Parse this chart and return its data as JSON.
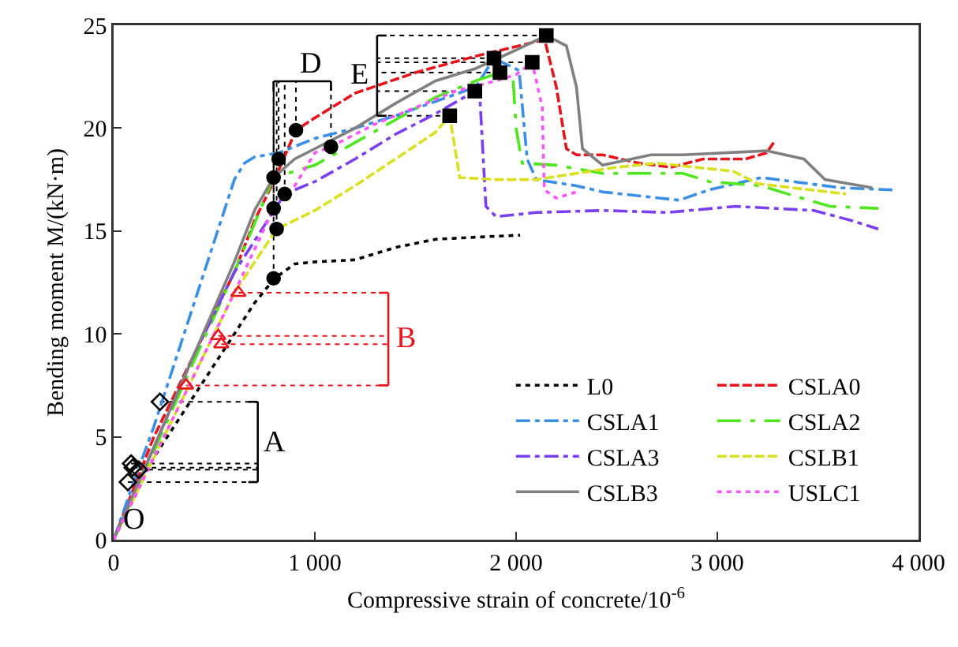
{
  "chart_data": {
    "type": "line",
    "xlabel": "Compressive strain of concrete/10$^{-6}$",
    "ylabel": "Bending moment M/(kN·m)",
    "xlim": [
      0,
      4000
    ],
    "xticks": [
      0,
      {
        "value": 1000,
        "label": "1 000"
      },
      {
        "value": 2000,
        "label": "2 000"
      },
      {
        "value": 3000,
        "label": "3 000"
      },
      {
        "value": 4000,
        "label": "4 000"
      }
    ],
    "ylim": [
      0,
      25
    ],
    "yticks": [
      0,
      5,
      10,
      15,
      20,
      25
    ],
    "grid": false,
    "legend": "bottom right",
    "series": [
      {
        "name": "L0",
        "color": "#000000",
        "line_style": "dotted",
        "x": [
          0,
          100,
          200,
          300,
          400,
          500,
          600,
          700,
          800,
          900,
          1000,
          1200,
          1400,
          1600,
          1800,
          2020
        ],
        "values": [
          0,
          2,
          4,
          5.5,
          7,
          8.5,
          10,
          11.5,
          12.7,
          13.4,
          13.5,
          13.6,
          14.2,
          14.6,
          14.7,
          14.8
        ]
      },
      {
        "name": "CSLA0",
        "color": "#e8141c",
        "line_style": "dashed",
        "x": [
          0,
          100,
          200,
          300,
          400,
          500,
          600,
          700,
          800,
          906,
          1000,
          1200,
          1500,
          1800,
          2142,
          2200,
          2250,
          2300,
          2430,
          2610,
          2770,
          2930,
          3140,
          3245,
          3280
        ],
        "values": [
          0,
          2.5,
          5,
          7,
          9,
          11,
          13,
          15.5,
          17.5,
          19.9,
          20.5,
          21.7,
          22.7,
          23.5,
          24.3,
          22,
          19,
          18.7,
          18.7,
          18.3,
          18.1,
          18.5,
          18.5,
          18.8,
          19.3
        ]
      },
      {
        "name": "CSLA1",
        "color": "#3a8ee6",
        "line_style": "dashdot",
        "x": [
          0,
          100,
          200,
          300,
          400,
          500,
          600,
          650,
          700,
          820,
          1000,
          1200,
          1400,
          1600,
          1800,
          1890,
          2015,
          2055,
          2100,
          2300,
          2430,
          2810,
          2960,
          3220,
          3615,
          3870
        ],
        "values": [
          0,
          2.8,
          5.5,
          8.5,
          11.5,
          14.5,
          17.5,
          18.3,
          18.6,
          18.8,
          19.5,
          20,
          20.6,
          21.3,
          22,
          23.4,
          22.8,
          18.5,
          17.5,
          17.2,
          16.9,
          16.5,
          17,
          17.6,
          17.1,
          17
        ]
      },
      {
        "name": "CSLA2",
        "color": "#4ee61e",
        "line_style": "longdashdot",
        "x": [
          0,
          200,
          400,
          600,
          795,
          1000,
          1200,
          1400,
          1600,
          1800,
          1920,
          1985,
          2000,
          2030,
          2200,
          2430,
          2830,
          2960,
          3220,
          3350,
          3560,
          3800
        ],
        "values": [
          0,
          4.3,
          8.7,
          13,
          17.6,
          18.2,
          19.3,
          20.4,
          21.5,
          22.3,
          22.7,
          22.4,
          20,
          18.3,
          18.2,
          17.8,
          17.8,
          17.4,
          17.2,
          16.8,
          16.2,
          16.1
        ]
      },
      {
        "name": "CSLA3",
        "color": "#7b3ff2",
        "line_style": "dashdot",
        "x": [
          0,
          200,
          400,
          600,
          850,
          1000,
          1200,
          1400,
          1600,
          1795,
          1820,
          1850,
          1900,
          2100,
          2430,
          2750,
          3090,
          3480,
          3670,
          3800
        ],
        "values": [
          0,
          4.5,
          9,
          13,
          16.8,
          17.4,
          18.5,
          19.7,
          20.7,
          21.8,
          21.5,
          16.2,
          15.7,
          15.9,
          16,
          15.9,
          16.2,
          16,
          15.5,
          15.1
        ]
      },
      {
        "name": "CSLB1",
        "color": "#d9e021",
        "line_style": "dashed",
        "x": [
          0,
          200,
          400,
          600,
          810,
          1000,
          1200,
          1400,
          1600,
          1670,
          1720,
          1900,
          2100,
          2300,
          2500,
          2700,
          3080,
          3200,
          3640
        ],
        "values": [
          0,
          4,
          8,
          12,
          15.1,
          16,
          17.2,
          18.5,
          19.8,
          20.6,
          17.6,
          17.5,
          17.5,
          17.8,
          18.1,
          18.3,
          17.9,
          17.3,
          16.8
        ]
      },
      {
        "name": "CSLB3",
        "color": "#808080",
        "line_style": "solid",
        "x": [
          0,
          200,
          400,
          600,
          700,
          795,
          900,
          1000,
          1200,
          1400,
          1600,
          1800,
          2000,
          2150,
          2250,
          2300,
          2330,
          2430,
          2670,
          2830,
          3245,
          3430,
          3535,
          3770
        ],
        "values": [
          0,
          4.5,
          9,
          13.5,
          16,
          17.6,
          18.5,
          19,
          20,
          21.2,
          22.3,
          22.9,
          23.8,
          24.5,
          24,
          22,
          19,
          18.2,
          18.7,
          18.7,
          18.9,
          18.5,
          17.5,
          17.1
        ]
      },
      {
        "name": "USLC1",
        "color": "#ff55ff",
        "line_style": "dotted",
        "x": [
          0,
          200,
          400,
          600,
          795,
          900,
          1000,
          1080,
          1300,
          1500,
          1700,
          1900,
          2000,
          2080,
          2130,
          2140,
          2200,
          2300
        ],
        "values": [
          0,
          4,
          8,
          12,
          16.1,
          17.2,
          18.8,
          19.1,
          20.2,
          21,
          21.8,
          22.3,
          22.6,
          23.2,
          21,
          17,
          16.6,
          16.9
        ]
      },
      {
        "type": "scatter",
        "marker": "diamond",
        "color": "#000000",
        "x": [
          230,
          87,
          95,
          125,
          71
        ],
        "values": [
          6.7,
          3.7,
          3.5,
          3.4,
          2.8
        ]
      },
      {
        "type": "scatter",
        "marker": "triangle",
        "color": "#e8141c",
        "x": [
          620,
          520,
          535,
          360
        ],
        "values": [
          12,
          9.9,
          9.5,
          7.5
        ]
      },
      {
        "type": "scatter",
        "marker": "circle",
        "color": "#000000",
        "x": [
          906,
          1080,
          820,
          795,
          850,
          795,
          810,
          795
        ],
        "values": [
          19.9,
          19.1,
          18.5,
          17.6,
          16.8,
          16.1,
          15.1,
          12.7
        ]
      },
      {
        "type": "scatter",
        "marker": "square",
        "color": "#000000",
        "x": [
          2150,
          1890,
          2080,
          1920,
          1795,
          1670
        ],
        "values": [
          24.5,
          23.4,
          23.2,
          22.7,
          21.8,
          20.6
        ]
      }
    ],
    "annotations": [
      {
        "text": "A",
        "x": 230,
        "y": 6.7
      },
      {
        "text": "B",
        "x": 620,
        "y": 12
      },
      {
        "text": "D",
        "x": 906,
        "y": 19.9
      },
      {
        "text": "E",
        "x": 1670,
        "y": 20.6
      },
      {
        "text": "O",
        "x": 0,
        "y": 0
      }
    ]
  }
}
